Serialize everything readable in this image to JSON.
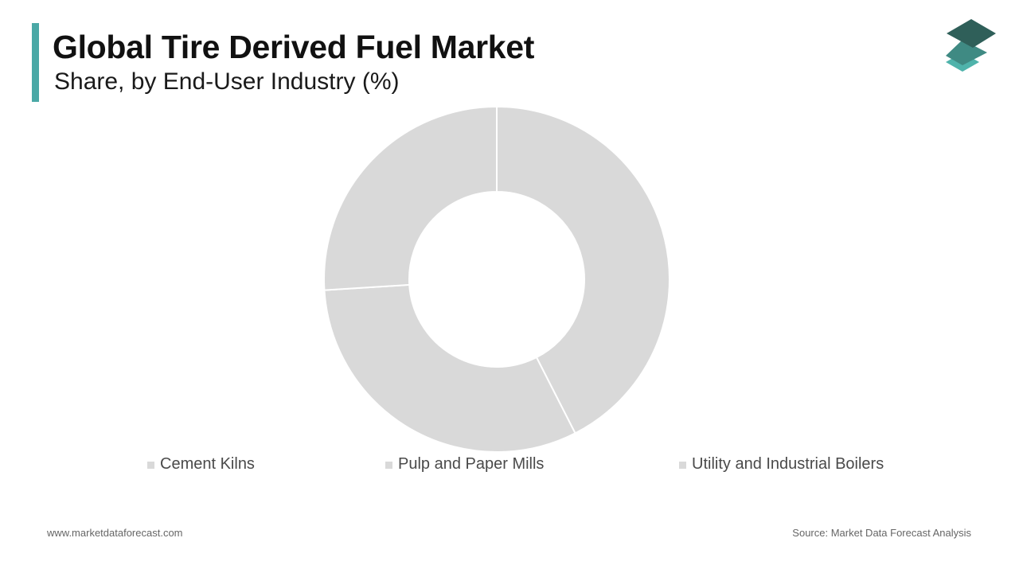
{
  "colors": {
    "accent": "#4aa8a6",
    "slice": "#d9d9d9",
    "slice_border": "#ffffff",
    "logo_dark": "#2f5f59",
    "logo_mid": "#3f8a83",
    "logo_light": "#4fb3ab"
  },
  "chart_data": {
    "type": "pie",
    "donut": true,
    "title": "Global Tire Derived Fuel Market",
    "subtitle": "Share, by End-User Industry (%)",
    "categories": [
      "Cement Kilns",
      "Pulp and Paper Mills",
      "Utility and Industrial Boilers"
    ],
    "values": [
      42.5,
      31.5,
      26.0
    ],
    "legend_position": "bottom",
    "data_labels": false
  },
  "legend": {
    "items": [
      {
        "label": "Cement Kilns",
        "color": "#d9d9d9"
      },
      {
        "label": "Pulp and Paper Mills",
        "color": "#d9d9d9"
      },
      {
        "label": "Utility and Industrial Boilers",
        "color": "#d9d9d9"
      }
    ]
  },
  "footer": {
    "website": "www.marketdataforecast.com",
    "source": "Source: Market Data Forecast Analysis"
  },
  "logo": {
    "icon": "stacked-layers-icon"
  }
}
